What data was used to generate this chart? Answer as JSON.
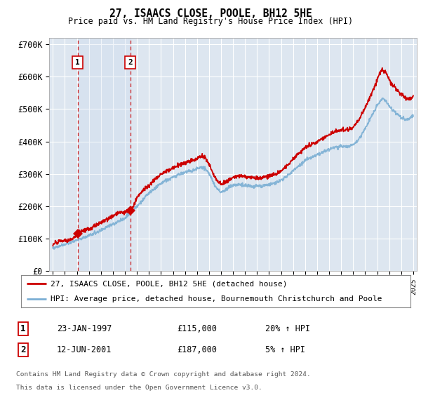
{
  "title": "27, ISAACS CLOSE, POOLE, BH12 5HE",
  "subtitle": "Price paid vs. HM Land Registry's House Price Index (HPI)",
  "yticks": [
    0,
    100000,
    200000,
    300000,
    400000,
    500000,
    600000,
    700000
  ],
  "ytick_labels": [
    "£0",
    "£100K",
    "£200K",
    "£300K",
    "£400K",
    "£500K",
    "£600K",
    "£700K"
  ],
  "xmin": 1994.7,
  "xmax": 2025.3,
  "ymin": 0,
  "ymax": 720000,
  "background_color": "#ffffff",
  "plot_bg_color": "#dde6f0",
  "grid_color": "#ffffff",
  "sale1_year": 1997.06,
  "sale1_price": 115000,
  "sale2_year": 2001.44,
  "sale2_price": 187000,
  "legend_line1": "27, ISAACS CLOSE, POOLE, BH12 5HE (detached house)",
  "legend_line2": "HPI: Average price, detached house, Bournemouth Christchurch and Poole",
  "table_row1": [
    "1",
    "23-JAN-1997",
    "£115,000",
    "20% ↑ HPI"
  ],
  "table_row2": [
    "2",
    "12-JUN-2001",
    "£187,000",
    "5% ↑ HPI"
  ],
  "footer1": "Contains HM Land Registry data © Crown copyright and database right 2024.",
  "footer2": "This data is licensed under the Open Government Licence v3.0.",
  "red_line_color": "#cc0000",
  "blue_line_color": "#7bafd4",
  "marker_color": "#cc0000",
  "hpi_nodes_x": [
    1995,
    1996,
    1997,
    1998,
    1999,
    2000,
    2001,
    2002,
    2003,
    2004,
    2005,
    2006,
    2007,
    2007.5,
    2008,
    2008.5,
    2009,
    2009.5,
    2010,
    2011,
    2012,
    2013,
    2014,
    2015,
    2016,
    2017,
    2018,
    2019,
    2020,
    2021,
    2022,
    2022.5,
    2023,
    2023.5,
    2024,
    2025
  ],
  "hpi_nodes_y": [
    72000,
    82000,
    96000,
    110000,
    126000,
    145000,
    165000,
    200000,
    240000,
    270000,
    290000,
    305000,
    315000,
    320000,
    300000,
    265000,
    245000,
    255000,
    265000,
    265000,
    262000,
    268000,
    280000,
    310000,
    340000,
    360000,
    375000,
    385000,
    390000,
    440000,
    510000,
    530000,
    510000,
    490000,
    475000,
    480000
  ],
  "pp_nodes_x": [
    1995,
    1996,
    1997,
    1997.06,
    1998,
    1999,
    2000,
    2001,
    2001.44,
    2002,
    2003,
    2004,
    2005,
    2006,
    2007,
    2007.5,
    2008,
    2008.5,
    2009,
    2009.5,
    2010,
    2011,
    2012,
    2013,
    2014,
    2015,
    2016,
    2017,
    2018,
    2019,
    2020,
    2021,
    2022,
    2022.5,
    2023,
    2023.5,
    2024,
    2025
  ],
  "pp_nodes_y": [
    82000,
    94000,
    112000,
    115000,
    130000,
    150000,
    170000,
    183000,
    187000,
    225000,
    265000,
    300000,
    318000,
    335000,
    348000,
    355000,
    330000,
    290000,
    270000,
    278000,
    290000,
    292000,
    288000,
    295000,
    310000,
    345000,
    380000,
    400000,
    420000,
    435000,
    445000,
    505000,
    590000,
    620000,
    590000,
    565000,
    545000,
    540000
  ]
}
